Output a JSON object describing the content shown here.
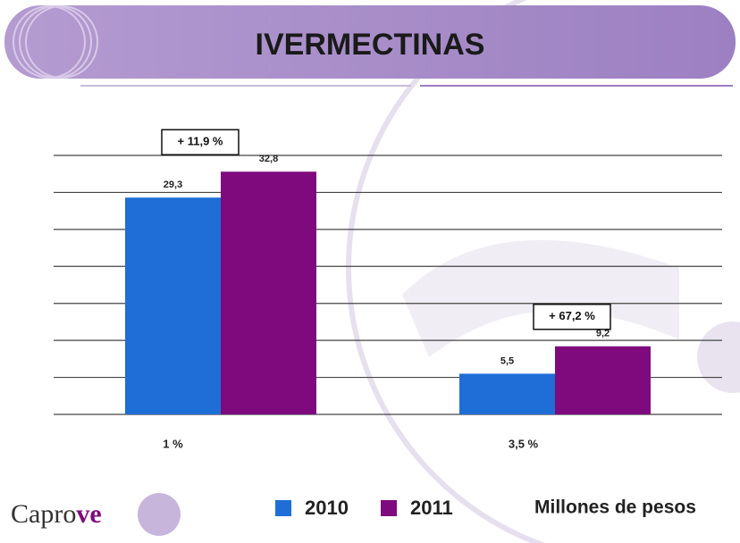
{
  "chart_data": {
    "type": "bar",
    "title": "IVERMECTINAS",
    "categories": [
      "1 %",
      "3,5 %"
    ],
    "series": [
      {
        "name": "2010",
        "color": "#1f6ed8",
        "values": [
          29.3,
          5.5
        ],
        "value_labels": [
          "29,3",
          "5,5"
        ]
      },
      {
        "name": "2011",
        "color": "#7e0a7e",
        "values": [
          32.8,
          9.2
        ],
        "value_labels": [
          "32,8",
          "9,2"
        ]
      }
    ],
    "annotations": [
      "+ 11,9 %",
      "+ 67,2 %"
    ],
    "unit_note": "Millones de pesos",
    "ylim": [
      0,
      35
    ],
    "yticks": [
      0,
      5,
      10,
      15,
      20,
      25,
      30,
      35
    ],
    "grid": true,
    "legend": "bottom",
    "logo": [
      "Capro",
      "ve"
    ]
  }
}
